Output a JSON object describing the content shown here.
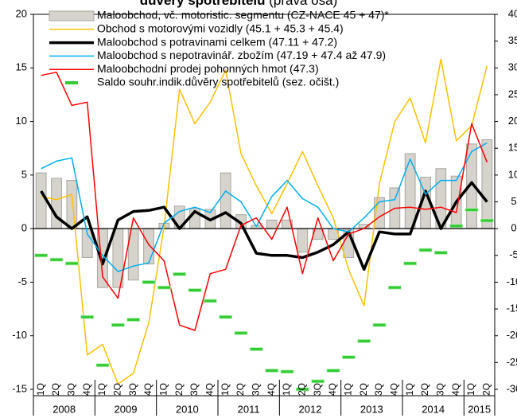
{
  "chart_data": {
    "type": "combo",
    "title": "důvěry spotřebitelů",
    "title_note": "(pravá osa)",
    "categories": [
      "1Q",
      "2Q",
      "3Q",
      "4Q",
      "1Q",
      "2Q",
      "3Q",
      "4Q",
      "1Q",
      "2Q",
      "3Q",
      "4Q",
      "1Q",
      "2Q",
      "3Q",
      "4Q",
      "1Q",
      "2Q",
      "3Q",
      "4Q",
      "1Q",
      "2Q",
      "3Q",
      "4Q",
      "1Q",
      "2Q",
      "3Q",
      "4Q",
      "1Q",
      "2Q"
    ],
    "years": [
      "2008",
      "2009",
      "2010",
      "2011",
      "2012",
      "2013",
      "2014",
      "2015"
    ],
    "ylim": [
      -15,
      20
    ],
    "yticks": [
      -15,
      -10,
      -5,
      0,
      5,
      10,
      15,
      20
    ],
    "y2lim": [
      -30,
      40
    ],
    "y2ticks": [
      -30,
      -25,
      -20,
      -15,
      -10,
      -5,
      0,
      5,
      10,
      15,
      20,
      25,
      30,
      35,
      40
    ],
    "series": [
      {
        "name": "Maloobchod, vč. motoristic. segmentu (CZ-NACE 45 + 47)*",
        "kind": "bar",
        "color": "#d6d3cc",
        "values": [
          5.2,
          4.7,
          4.5,
          -2.7,
          -5.5,
          -5.5,
          -4.8,
          -3.3,
          0.5,
          2.1,
          1.9,
          1.8,
          5.2,
          1.3,
          0.3,
          0.8,
          0.8,
          -2.2,
          -1.0,
          -1.0,
          -2.7,
          0.4,
          2.9,
          3.8,
          7.0,
          4.8,
          5.6,
          4.9,
          7.9,
          8.3
        ]
      },
      {
        "name": "Obchod s motorovými vozidly (45.1 + 45.3 + 45.4)",
        "kind": "line",
        "color": "#ffc000",
        "width": 1.5,
        "values": [
          3.0,
          2.7,
          3.2,
          -11.8,
          -10.8,
          -14.5,
          -13.5,
          -8.8,
          0.2,
          13.0,
          9.8,
          11.8,
          14.8,
          7.0,
          4.0,
          1.4,
          4.2,
          7.2,
          4.0,
          1.0,
          -3.8,
          -7.2,
          4.2,
          10.0,
          12.2,
          8.0,
          15.8,
          8.2,
          9.6,
          15.2
        ]
      },
      {
        "name": "Maloobchod s potravinami celkem (47.11 + 47.2)",
        "kind": "line",
        "color": "#000000",
        "width": 3.5,
        "values": [
          3.5,
          1.1,
          0.0,
          1.1,
          -3.3,
          0.8,
          1.6,
          1.7,
          2.0,
          0.0,
          1.6,
          0.8,
          1.5,
          0.5,
          -2.3,
          -2.5,
          -2.5,
          -2.7,
          -2.2,
          -1.5,
          -0.3,
          -3.8,
          -0.3,
          -0.5,
          -0.5,
          3.5,
          0.0,
          2.5,
          4.3,
          2.5
        ]
      },
      {
        "name": "Maloobchod s nepotravinář. zbožím (47.19 + 47.4 až 47.9)",
        "kind": "line",
        "color": "#00b0f0",
        "width": 1.5,
        "values": [
          5.6,
          6.3,
          6.6,
          -0.5,
          -2.5,
          -4.0,
          -3.5,
          -3.2,
          0.5,
          1.6,
          2.0,
          1.5,
          3.5,
          2.5,
          0.2,
          3.0,
          4.5,
          2.8,
          2.0,
          0.0,
          -0.3,
          1.0,
          2.5,
          2.7,
          6.5,
          3.2,
          4.5,
          4.5,
          7.2,
          8.0
        ]
      },
      {
        "name": "Maloobchodní prodej pohonných hmot (47.3)",
        "kind": "line",
        "color": "#ff0000",
        "width": 1.5,
        "values": [
          14.3,
          14.6,
          11.5,
          11.8,
          -4.5,
          -6.5,
          1.0,
          -1.5,
          -3.0,
          -9.0,
          -9.5,
          -4.2,
          -3.8,
          0.3,
          1.0,
          -1.0,
          2.0,
          -4.2,
          1.0,
          -3.0,
          -0.5,
          0.0,
          1.1,
          1.9,
          2.0,
          1.8,
          2.0,
          1.5,
          9.8,
          6.2
        ]
      },
      {
        "name": "Saldo souhr.indik.důvěry spotřebitelů (sez. očišt.)",
        "kind": "dash",
        "axis": "y2",
        "color": "#33cc33",
        "values": [
          -5.0,
          -5.8,
          -6.5,
          -16.5,
          -25.5,
          -18.0,
          -17.0,
          -10.0,
          -11.0,
          -8.5,
          -11.5,
          -13.5,
          -16.5,
          -19.5,
          -22.5,
          -26.5,
          -26.7,
          -30.0,
          -28.5,
          -26.5,
          -24.0,
          -21.0,
          -18.0,
          -11.0,
          -6.5,
          -4.0,
          -4.5,
          0.5,
          3.5,
          1.5
        ]
      }
    ]
  }
}
